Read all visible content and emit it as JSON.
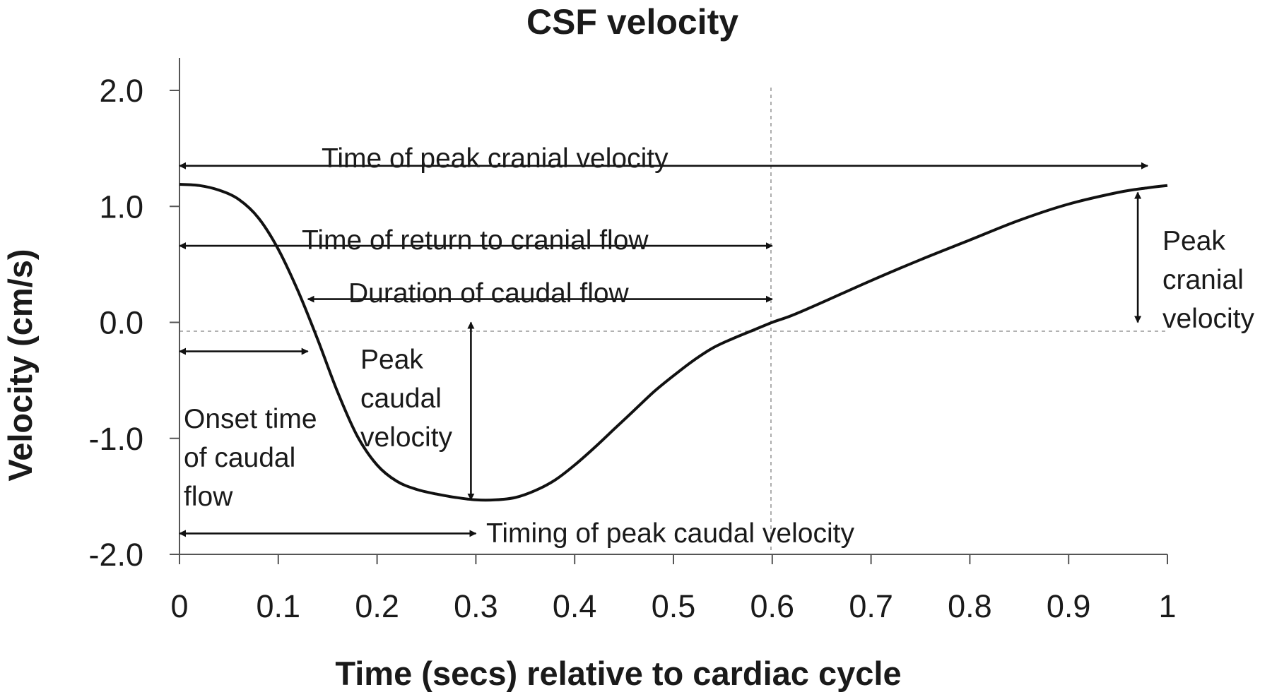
{
  "chart_data": {
    "type": "line",
    "title": "CSF velocity",
    "xlabel": "Time (secs) relative to cardiac cycle",
    "ylabel": "Velocity (cm/s)",
    "xlim": [
      0,
      1
    ],
    "ylim": [
      -2.0,
      2.0
    ],
    "x_ticks": [
      0,
      0.1,
      0.2,
      0.3,
      0.4,
      0.5,
      0.6,
      0.7,
      0.8,
      0.9,
      1
    ],
    "x_tick_labels": [
      "0",
      "0.1",
      "0.2",
      "0.3",
      "0.4",
      "0.5",
      "0.6",
      "0.7",
      "0.8",
      "0.9",
      "1"
    ],
    "y_ticks": [
      2.0,
      1.0,
      0.0,
      -1.0,
      -2.0
    ],
    "y_tick_labels": [
      "2.0",
      "1.0",
      "0.0",
      "-1.0",
      "-2.0"
    ],
    "grid": false,
    "reference_lines": [
      {
        "orientation": "horizontal",
        "value": 0.0,
        "style": "dashed"
      },
      {
        "orientation": "vertical",
        "value": 0.6,
        "style": "dashed"
      }
    ],
    "series": [
      {
        "x": [
          0,
          0.02,
          0.04,
          0.06,
          0.08,
          0.1,
          0.12,
          0.14,
          0.16,
          0.18,
          0.2,
          0.22,
          0.24,
          0.26,
          0.28,
          0.3,
          0.32,
          0.34,
          0.36,
          0.38,
          0.4,
          0.42,
          0.44,
          0.46,
          0.48,
          0.5,
          0.52,
          0.54,
          0.56,
          0.58,
          0.6,
          0.62,
          0.65,
          0.7,
          0.75,
          0.8,
          0.85,
          0.9,
          0.95,
          0.98,
          1.0
        ],
        "y": [
          1.19,
          1.18,
          1.14,
          1.06,
          0.9,
          0.63,
          0.27,
          -0.15,
          -0.6,
          -0.98,
          -1.23,
          -1.37,
          -1.44,
          -1.48,
          -1.51,
          -1.53,
          -1.53,
          -1.51,
          -1.45,
          -1.36,
          -1.23,
          -1.08,
          -0.92,
          -0.76,
          -0.6,
          -0.46,
          -0.33,
          -0.22,
          -0.14,
          -0.07,
          0.0,
          0.06,
          0.17,
          0.36,
          0.54,
          0.71,
          0.88,
          1.02,
          1.12,
          1.16,
          1.18
        ]
      }
    ],
    "annotations": [
      {
        "id": "time-peak-cranial",
        "type": "span",
        "orientation": "horizontal",
        "from": 0,
        "to": 0.98,
        "at": 1.35,
        "lines": [
          "Time of peak cranial velocity"
        ]
      },
      {
        "id": "time-return-cranial",
        "type": "span",
        "orientation": "horizontal",
        "from": 0,
        "to": 0.6,
        "at": 0.66,
        "lines": [
          "Time of return to cranial flow"
        ]
      },
      {
        "id": "duration-caudal",
        "type": "span",
        "orientation": "horizontal",
        "from": 0.13,
        "to": 0.6,
        "at": 0.2,
        "lines": [
          "Duration of caudal flow"
        ]
      },
      {
        "id": "onset-caudal",
        "type": "span",
        "orientation": "horizontal",
        "from": 0,
        "to": 0.13,
        "at": -0.25,
        "lines": [
          "Onset time",
          "of caudal",
          "flow"
        ]
      },
      {
        "id": "timing-peak-caudal",
        "type": "span",
        "orientation": "horizontal",
        "from": 0,
        "to": 0.3,
        "at": -1.82,
        "lines": [
          "Timing of peak caudal velocity"
        ]
      },
      {
        "id": "peak-caudal-velocity",
        "type": "span",
        "orientation": "vertical",
        "at": 0.295,
        "from": 0.0,
        "to": -1.53,
        "lines": [
          "Peak",
          "caudal",
          "velocity"
        ]
      },
      {
        "id": "peak-cranial-velocity",
        "type": "span",
        "orientation": "vertical",
        "at": 0.97,
        "from": 0.0,
        "to": 1.12,
        "lines": [
          "Peak",
          "cranial",
          "velocity"
        ]
      }
    ]
  }
}
